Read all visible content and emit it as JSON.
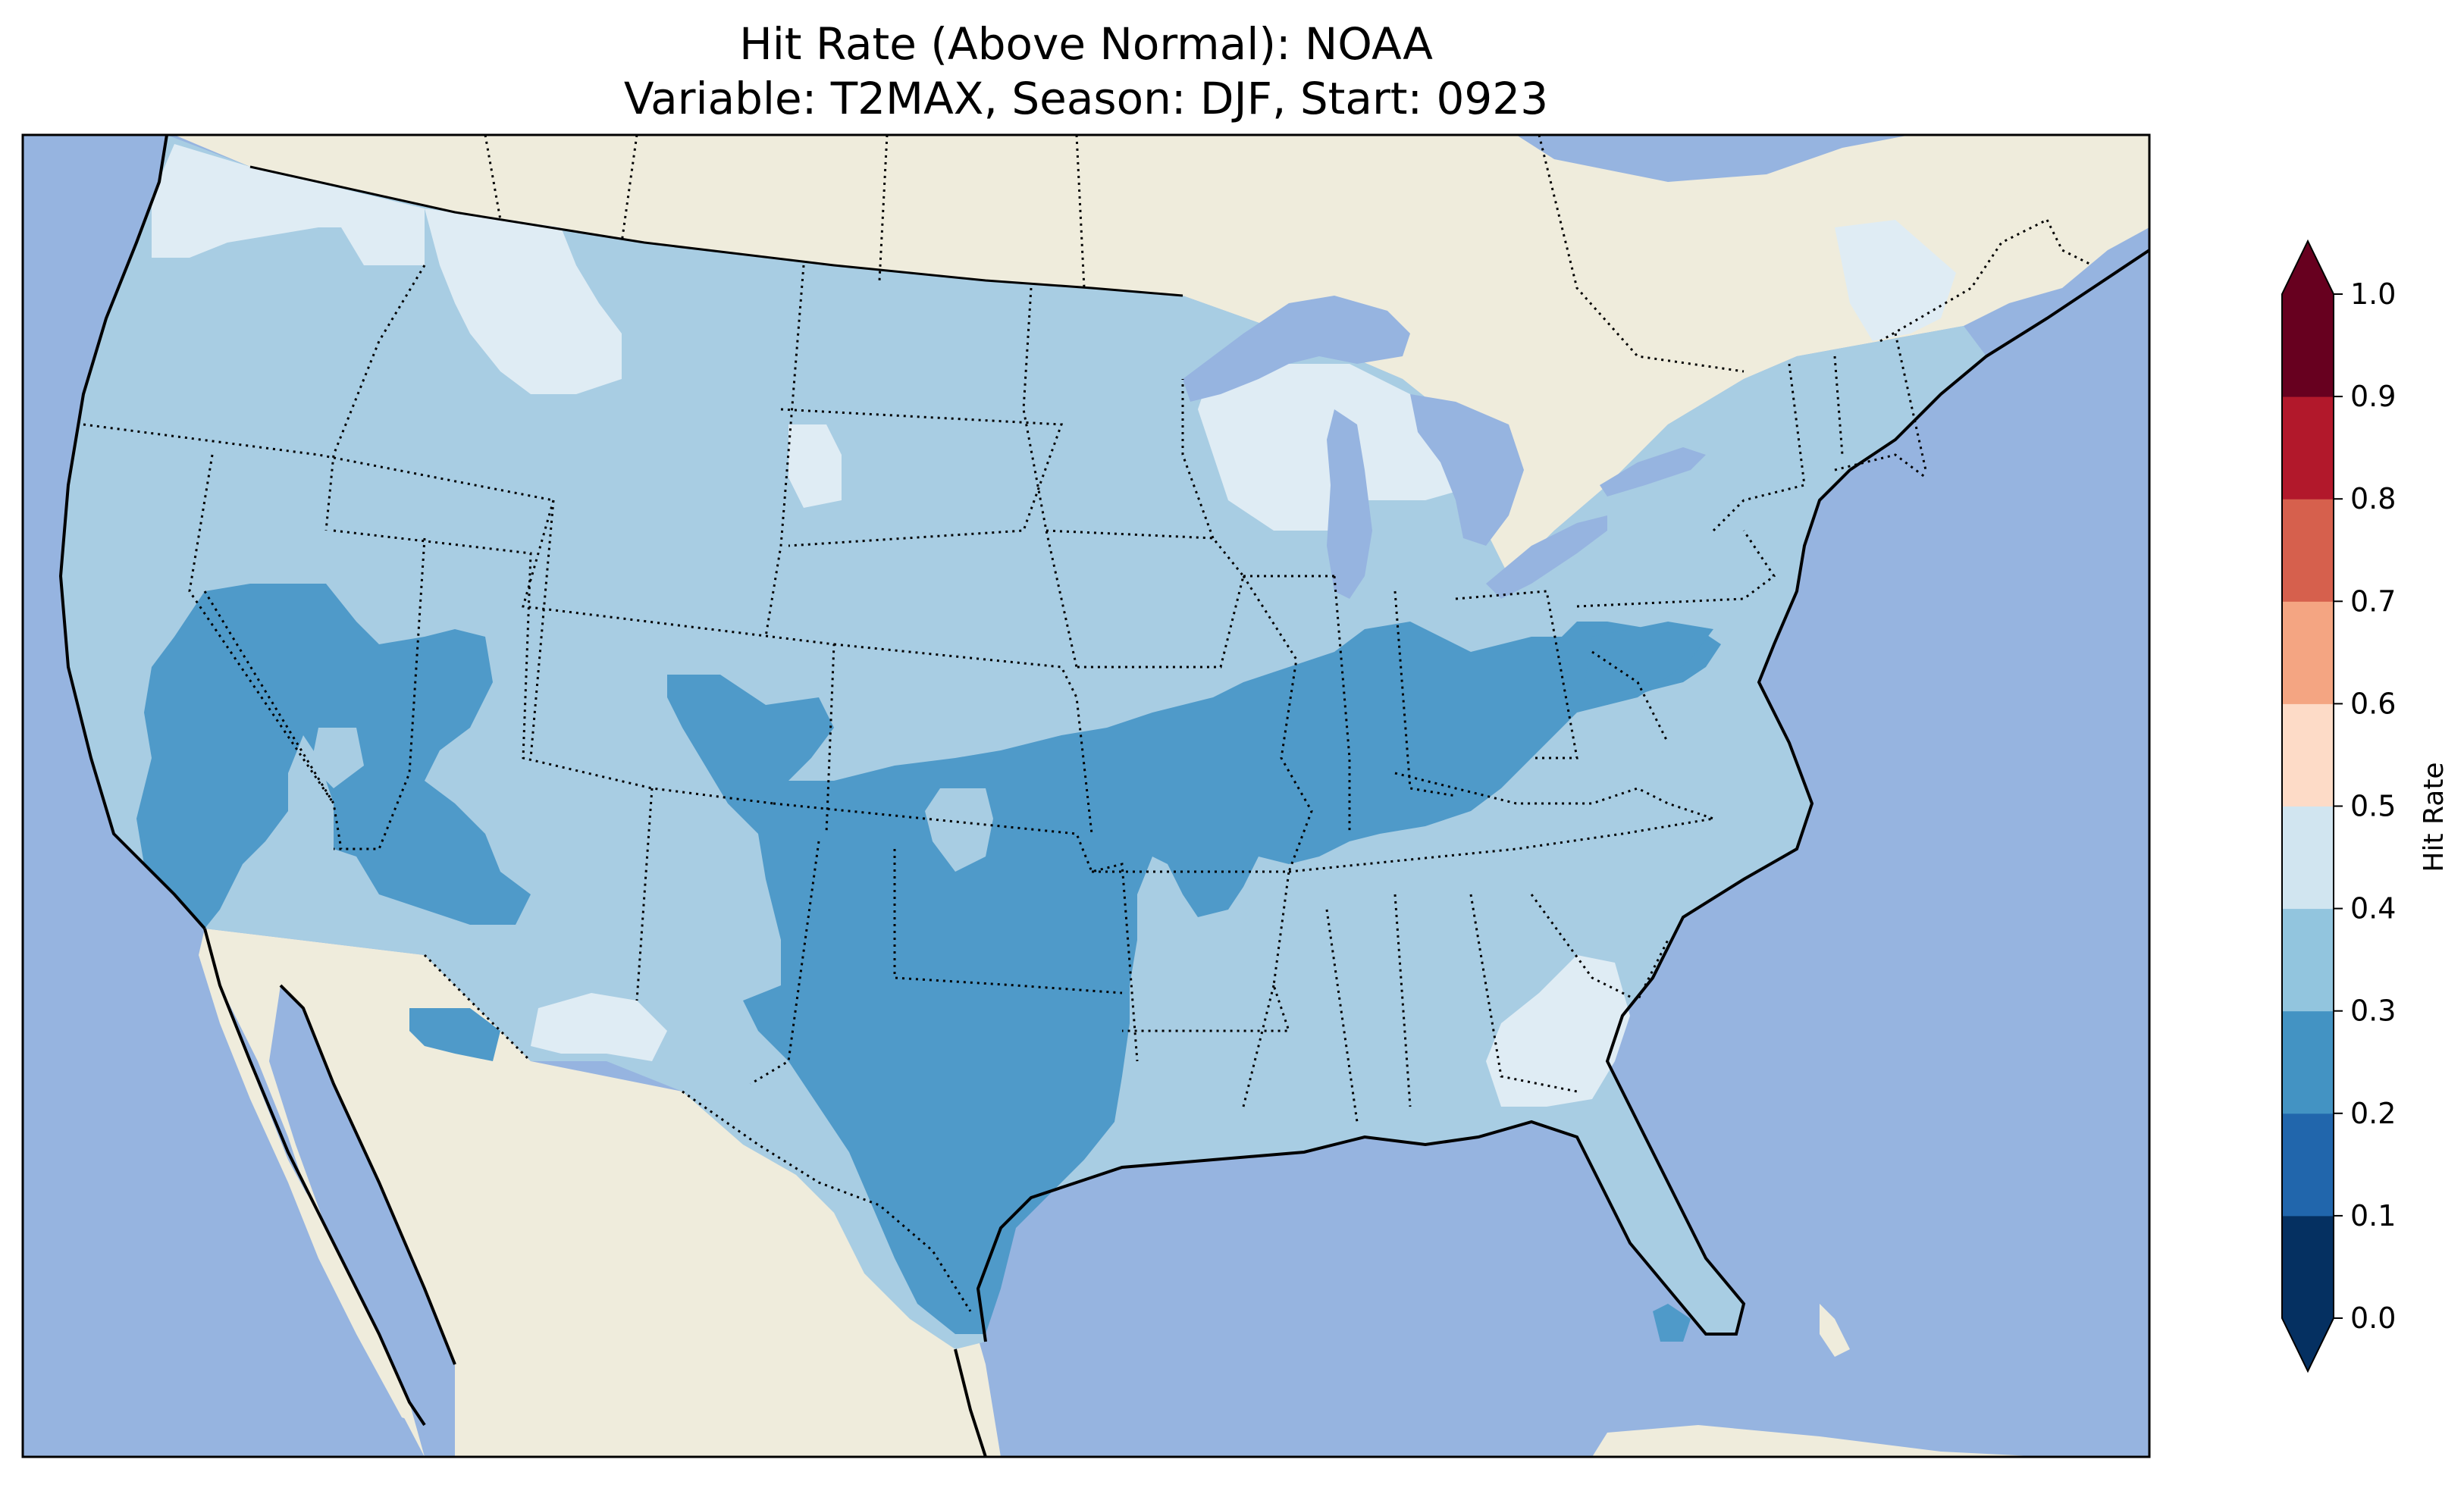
{
  "title": {
    "line1": "Hit Rate (Above Normal): NOAA",
    "line2": "Variable: T2MAX, Season: DJF, Start: 0923"
  },
  "map": {
    "ocean_color": "#96b4e0",
    "land_color": "#efecdc",
    "lake_color": "#96b4e0"
  },
  "colorbar": {
    "label": "Hit Rate",
    "ticks": [
      "0.0",
      "0.1",
      "0.2",
      "0.3",
      "0.4",
      "0.5",
      "0.6",
      "0.7",
      "0.8",
      "0.9",
      "1.0"
    ],
    "colors": [
      "#053061",
      "#2166ac",
      "#4393c3",
      "#92c5de",
      "#d1e5f0",
      "#fddbc7",
      "#f4a582",
      "#d6604d",
      "#b2182b",
      "#67001f"
    ],
    "under_color": "#053061",
    "over_color": "#67001f"
  },
  "legend_colors": {
    "lt_0_2": "#4f9ac9",
    "0_3_0_4": "#a8cde3",
    "0_4_0_5": "#dfecf4"
  }
}
